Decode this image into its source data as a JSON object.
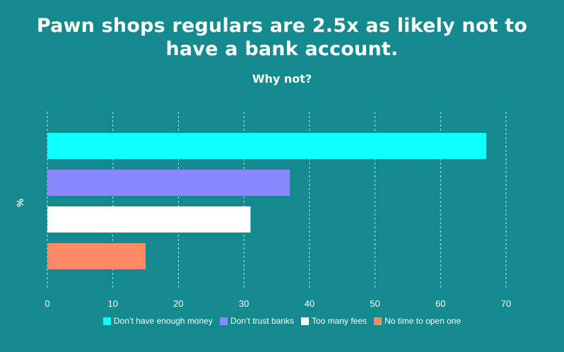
{
  "header": {
    "title": "Pawn shops regulars are 2.5x as likely not to have a bank account.",
    "subtitle": "Why not?"
  },
  "chart_data": {
    "type": "bar",
    "orientation": "horizontal",
    "title": "Pawn shops regulars are 2.5x as likely not to have a bank account.",
    "subtitle": "Why not?",
    "ylabel": "%",
    "xlabel": "",
    "xlim": [
      0,
      70
    ],
    "xticks": [
      0,
      10,
      20,
      30,
      40,
      50,
      60,
      70
    ],
    "grid": "dashed vertical",
    "legend_position": "bottom",
    "series": [
      {
        "name": "Don’t have enough money",
        "value": 67,
        "color": "#12ffff"
      },
      {
        "name": "Don’t trust banks",
        "value": 37,
        "color": "#8888ff"
      },
      {
        "name": "Too many fees",
        "value": 31,
        "color": "#ffffff"
      },
      {
        "name": "No time to open one",
        "value": 15,
        "color": "#ff8866"
      }
    ]
  }
}
